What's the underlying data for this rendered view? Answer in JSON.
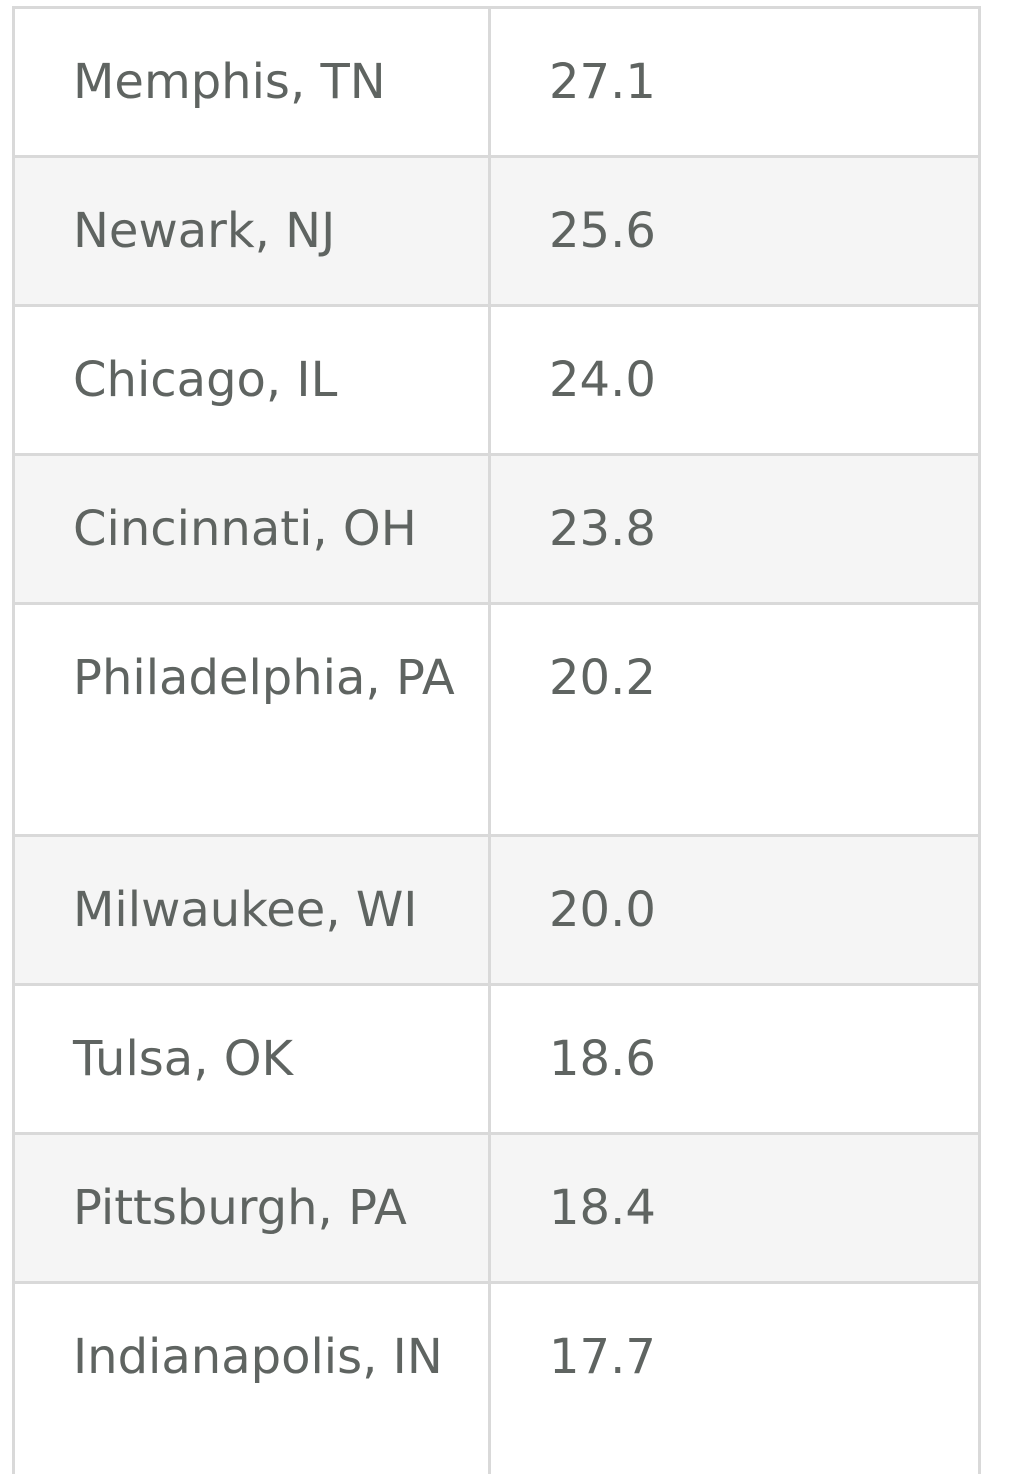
{
  "table": {
    "rows": [
      {
        "city": "Memphis, TN",
        "value": "27.1"
      },
      {
        "city": "Newark, NJ",
        "value": "25.6"
      },
      {
        "city": "Chicago, IL",
        "value": "24.0"
      },
      {
        "city": "Cincinnati, OH",
        "value": "23.8"
      },
      {
        "city": "Philadelphia, PA",
        "value": "20.2"
      },
      {
        "city": "Milwaukee, WI",
        "value": "20.0"
      },
      {
        "city": "Tulsa, OK",
        "value": "18.6"
      },
      {
        "city": "Pittsburgh, PA",
        "value": "18.4"
      },
      {
        "city": "Indianapolis, IN",
        "value": "17.7"
      }
    ]
  }
}
